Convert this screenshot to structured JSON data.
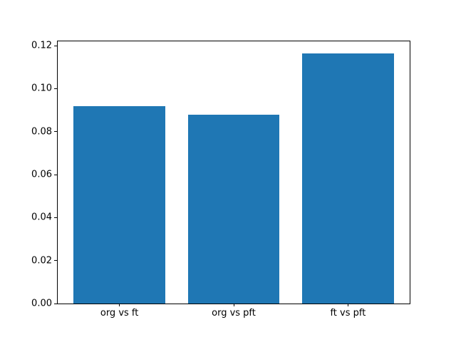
{
  "figure": {
    "background_color": "#ffffff"
  },
  "chart_data": {
    "type": "bar",
    "categories": [
      "org vs ft",
      "org vs pft",
      "ft vs pft"
    ],
    "values": [
      0.0918,
      0.088,
      0.1163
    ],
    "yticks": [
      "0.00",
      "0.02",
      "0.04",
      "0.06",
      "0.08",
      "0.10",
      "0.12"
    ],
    "ylim": [
      0,
      0.122
    ],
    "xlim": [
      -0.54,
      2.54
    ],
    "bar_width": 0.8,
    "bar_color": "#1f77b4",
    "spine_color": "#000000",
    "tick_color": "#000000",
    "grid": false,
    "legend": null
  }
}
